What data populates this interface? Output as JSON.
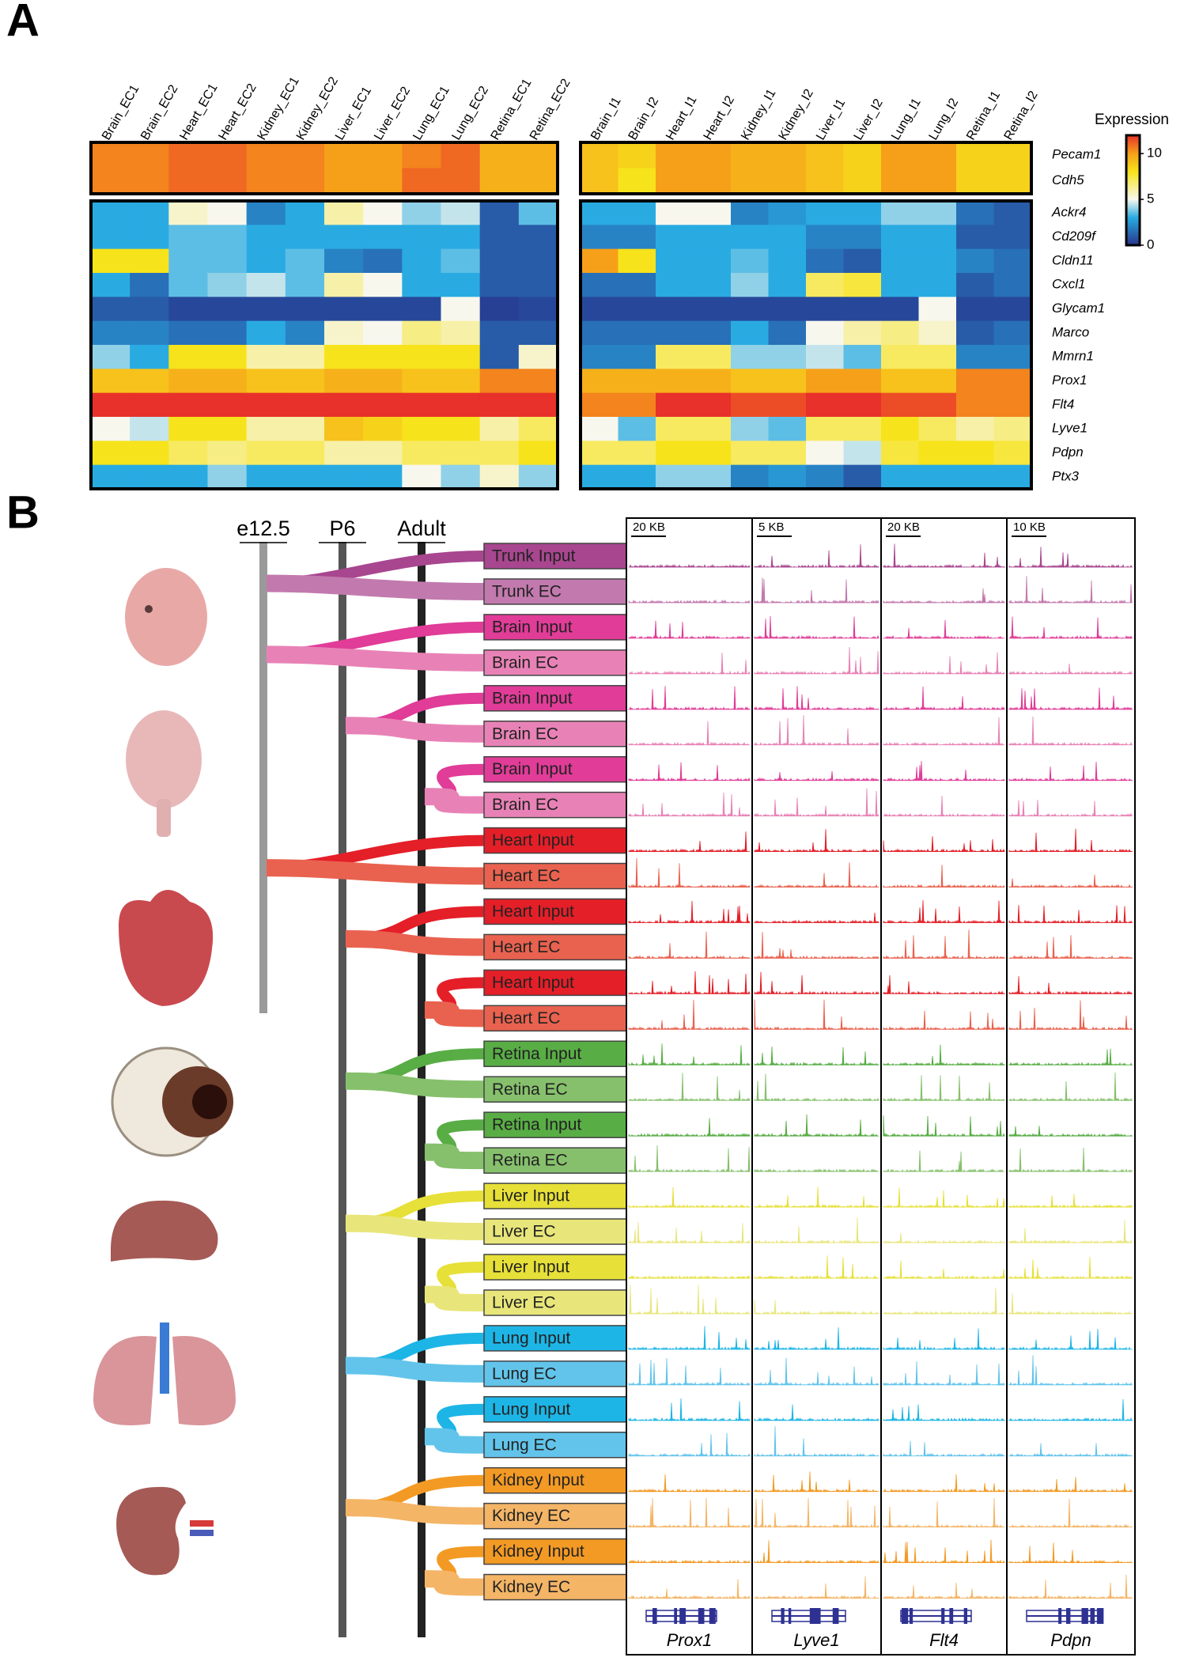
{
  "panel_a": {
    "label": "A",
    "colorbar_title": "Expression",
    "colorbar_range": [
      0,
      12
    ],
    "colorbar_ticks": [
      0,
      5,
      10
    ],
    "colormap": [
      [
        0,
        "#27348b"
      ],
      [
        3,
        "#29abe2"
      ],
      [
        5,
        "#f7f7ee"
      ],
      [
        8,
        "#f7e31b"
      ],
      [
        10,
        "#f6a01a"
      ],
      [
        12,
        "#e8312b"
      ]
    ],
    "gene_groups": [
      [
        "Pecam1",
        "Cdh5"
      ],
      [
        "Ackr4",
        "Cd209f",
        "Cldn11",
        "Cxcl1",
        "Glycam1",
        "Marco",
        "Mmrn1",
        "Prox1",
        "Flt4",
        "Lyve1",
        "Pdpn",
        "Ptx3"
      ]
    ],
    "heatmaps": [
      {
        "columns": [
          "Brain_EC1",
          "Brain_EC2",
          "Heart_EC1",
          "Heart_EC2",
          "Kidney_EC1",
          "Kidney_EC2",
          "Liver_EC1",
          "Liver_EC2",
          "Lung_EC1",
          "Lung_EC2",
          "Retina_EC1",
          "Retina_EC2"
        ],
        "groups": [
          [
            [
              10.5,
              10.5,
              11,
              11,
              10.5,
              10.5,
              10,
              10,
              10.5,
              11,
              9.5,
              9.5
            ],
            [
              10.5,
              10.5,
              11,
              11,
              10.5,
              10.5,
              10,
              10,
              11,
              11,
              9.5,
              9.5
            ]
          ],
          [
            [
              3,
              3,
              5.5,
              5,
              2,
              3,
              6,
              5,
              4,
              4.5,
              1,
              3.5
            ],
            [
              3,
              3,
              3.5,
              3.5,
              3,
              3,
              3,
              3,
              3,
              3,
              1,
              1
            ],
            [
              8,
              8,
              3.5,
              3.5,
              3,
              3.5,
              2,
              1.5,
              3,
              3.5,
              1,
              1
            ],
            [
              3,
              1.5,
              3.5,
              4,
              4.5,
              3.5,
              6,
              5,
              3,
              3,
              1,
              1
            ],
            [
              1,
              1,
              0.5,
              0.5,
              0.5,
              0.5,
              0.5,
              0.5,
              0.5,
              5,
              0.3,
              0.5
            ],
            [
              2,
              2,
              1.5,
              1.5,
              3,
              2,
              5.5,
              5,
              6.5,
              6,
              1,
              1
            ],
            [
              4,
              3,
              8,
              8,
              6,
              6,
              8,
              8,
              8,
              8,
              1,
              5.5
            ],
            [
              9,
              9,
              9.5,
              9.5,
              9,
              9,
              9.5,
              9.5,
              9,
              9,
              10.5,
              10.5
            ],
            [
              12,
              12,
              12,
              12,
              12,
              12,
              12,
              12,
              12,
              12,
              12,
              12
            ],
            [
              5,
              4.5,
              8,
              8,
              6,
              6,
              9,
              8.5,
              8,
              8,
              6,
              7
            ],
            [
              8,
              8,
              7,
              6.5,
              7,
              7,
              6,
              6,
              7,
              7,
              7,
              8
            ],
            [
              3,
              3,
              3,
              4,
              3,
              3,
              3,
              3,
              5,
              4,
              5.5,
              4
            ]
          ]
        ]
      },
      {
        "columns": [
          "Brain_I1",
          "Brain_I2",
          "Heart_I1",
          "Heart_I2",
          "Kidney_I1",
          "Kidney_I2",
          "Liver_I1",
          "Liver_I2",
          "Lung_I1",
          "Lung_I2",
          "Retina_I1",
          "Retina_I2"
        ],
        "groups": [
          [
            [
              9,
              8.5,
              10,
              10,
              9.5,
              9.5,
              9,
              8.5,
              10,
              10,
              8.5,
              8.5
            ],
            [
              9,
              8,
              10,
              10,
              9.5,
              9.5,
              9,
              8.5,
              10,
              10,
              8.5,
              8.5
            ]
          ],
          [
            [
              3,
              3,
              5,
              5,
              2,
              2.5,
              3,
              3,
              4,
              4,
              1.5,
              1
            ],
            [
              2,
              2,
              3,
              3,
              3,
              3,
              2,
              2,
              3,
              3,
              1,
              1
            ],
            [
              10,
              8,
              3,
              3,
              3.5,
              3,
              1.5,
              1,
              3,
              3,
              2,
              1.5
            ],
            [
              1.5,
              1.5,
              3,
              3,
              4,
              3,
              7,
              7.5,
              3,
              3,
              1,
              1.5
            ],
            [
              0.5,
              0.5,
              0.5,
              0.5,
              0.5,
              0.5,
              0.5,
              0.5,
              0.5,
              5,
              0.5,
              0.5
            ],
            [
              1.5,
              1.5,
              1.5,
              1.5,
              3,
              1.5,
              5,
              6,
              6.5,
              5.5,
              1,
              1.5
            ],
            [
              2,
              2,
              7,
              7,
              4,
              4,
              4.5,
              3.5,
              7,
              7,
              2,
              2
            ],
            [
              9.5,
              9.5,
              9.5,
              9.5,
              9,
              9,
              10,
              10,
              9,
              9,
              10.5,
              10.5
            ],
            [
              10.5,
              10.5,
              12,
              12,
              11.5,
              11.5,
              12,
              12,
              11.5,
              11.5,
              10.5,
              10.5
            ],
            [
              5,
              3.5,
              7,
              7,
              4,
              3.5,
              7,
              7,
              8,
              7,
              6,
              6.5
            ],
            [
              7,
              7,
              8,
              8,
              7,
              7,
              5,
              4.5,
              7.5,
              8,
              8,
              7.5
            ],
            [
              3,
              3,
              4,
              4,
              2,
              2.5,
              2,
              1,
              3,
              3,
              3,
              3
            ]
          ]
        ]
      }
    ]
  },
  "panel_b": {
    "label": "B",
    "timepoints": [
      "e12.5",
      "P6",
      "Adult"
    ],
    "pairs": [
      {
        "timepoint": 0,
        "samples": [
          {
            "label": "Trunk Input",
            "color": "#a8468f"
          },
          {
            "label": "Trunk EC",
            "color": "#c27aae"
          }
        ]
      },
      {
        "timepoint": 0,
        "samples": [
          {
            "label": "Brain Input",
            "color": "#e03c98"
          },
          {
            "label": "Brain EC",
            "color": "#e882b6"
          }
        ]
      },
      {
        "timepoint": 1,
        "samples": [
          {
            "label": "Brain Input",
            "color": "#e03c98"
          },
          {
            "label": "Brain EC",
            "color": "#e882b6"
          }
        ]
      },
      {
        "timepoint": 2,
        "samples": [
          {
            "label": "Brain Input",
            "color": "#e03c98"
          },
          {
            "label": "Brain EC",
            "color": "#e882b6"
          }
        ]
      },
      {
        "timepoint": 0,
        "samples": [
          {
            "label": "Heart Input",
            "color": "#e41f28"
          },
          {
            "label": "Heart EC",
            "color": "#e9624f"
          }
        ]
      },
      {
        "timepoint": 1,
        "samples": [
          {
            "label": "Heart Input",
            "color": "#e41f28"
          },
          {
            "label": "Heart EC",
            "color": "#e9624f"
          }
        ]
      },
      {
        "timepoint": 2,
        "samples": [
          {
            "label": "Heart Input",
            "color": "#e41f28"
          },
          {
            "label": "Heart EC",
            "color": "#e9624f"
          }
        ]
      },
      {
        "timepoint": 1,
        "samples": [
          {
            "label": "Retina Input",
            "color": "#58ad45"
          },
          {
            "label": "Retina EC",
            "color": "#86c06c"
          }
        ]
      },
      {
        "timepoint": 2,
        "samples": [
          {
            "label": "Retina Input",
            "color": "#58ad45"
          },
          {
            "label": "Retina EC",
            "color": "#86c06c"
          }
        ]
      },
      {
        "timepoint": 1,
        "samples": [
          {
            "label": "Liver Input",
            "color": "#e6e038"
          },
          {
            "label": "Liver EC",
            "color": "#e8e67a"
          }
        ]
      },
      {
        "timepoint": 2,
        "samples": [
          {
            "label": "Liver Input",
            "color": "#e6e038"
          },
          {
            "label": "Liver EC",
            "color": "#e8e67a"
          }
        ]
      },
      {
        "timepoint": 1,
        "samples": [
          {
            "label": "Lung Input",
            "color": "#1db5e6"
          },
          {
            "label": "Lung EC",
            "color": "#62c4ea"
          }
        ]
      },
      {
        "timepoint": 2,
        "samples": [
          {
            "label": "Lung Input",
            "color": "#1db5e6"
          },
          {
            "label": "Lung EC",
            "color": "#62c4ea"
          }
        ]
      },
      {
        "timepoint": 1,
        "samples": [
          {
            "label": "Kidney Input",
            "color": "#f39a24"
          },
          {
            "label": "Kidney EC",
            "color": "#f4b567"
          }
        ]
      },
      {
        "timepoint": 2,
        "samples": [
          {
            "label": "Kidney Input",
            "color": "#f39a24"
          },
          {
            "label": "Kidney EC",
            "color": "#f4b567"
          }
        ]
      }
    ],
    "scales": [
      "20 KB",
      "5 KB",
      "20 KB",
      "10 KB"
    ],
    "genes": [
      "Prox1",
      "Lyve1",
      "Flt4",
      "Pdpn"
    ]
  }
}
